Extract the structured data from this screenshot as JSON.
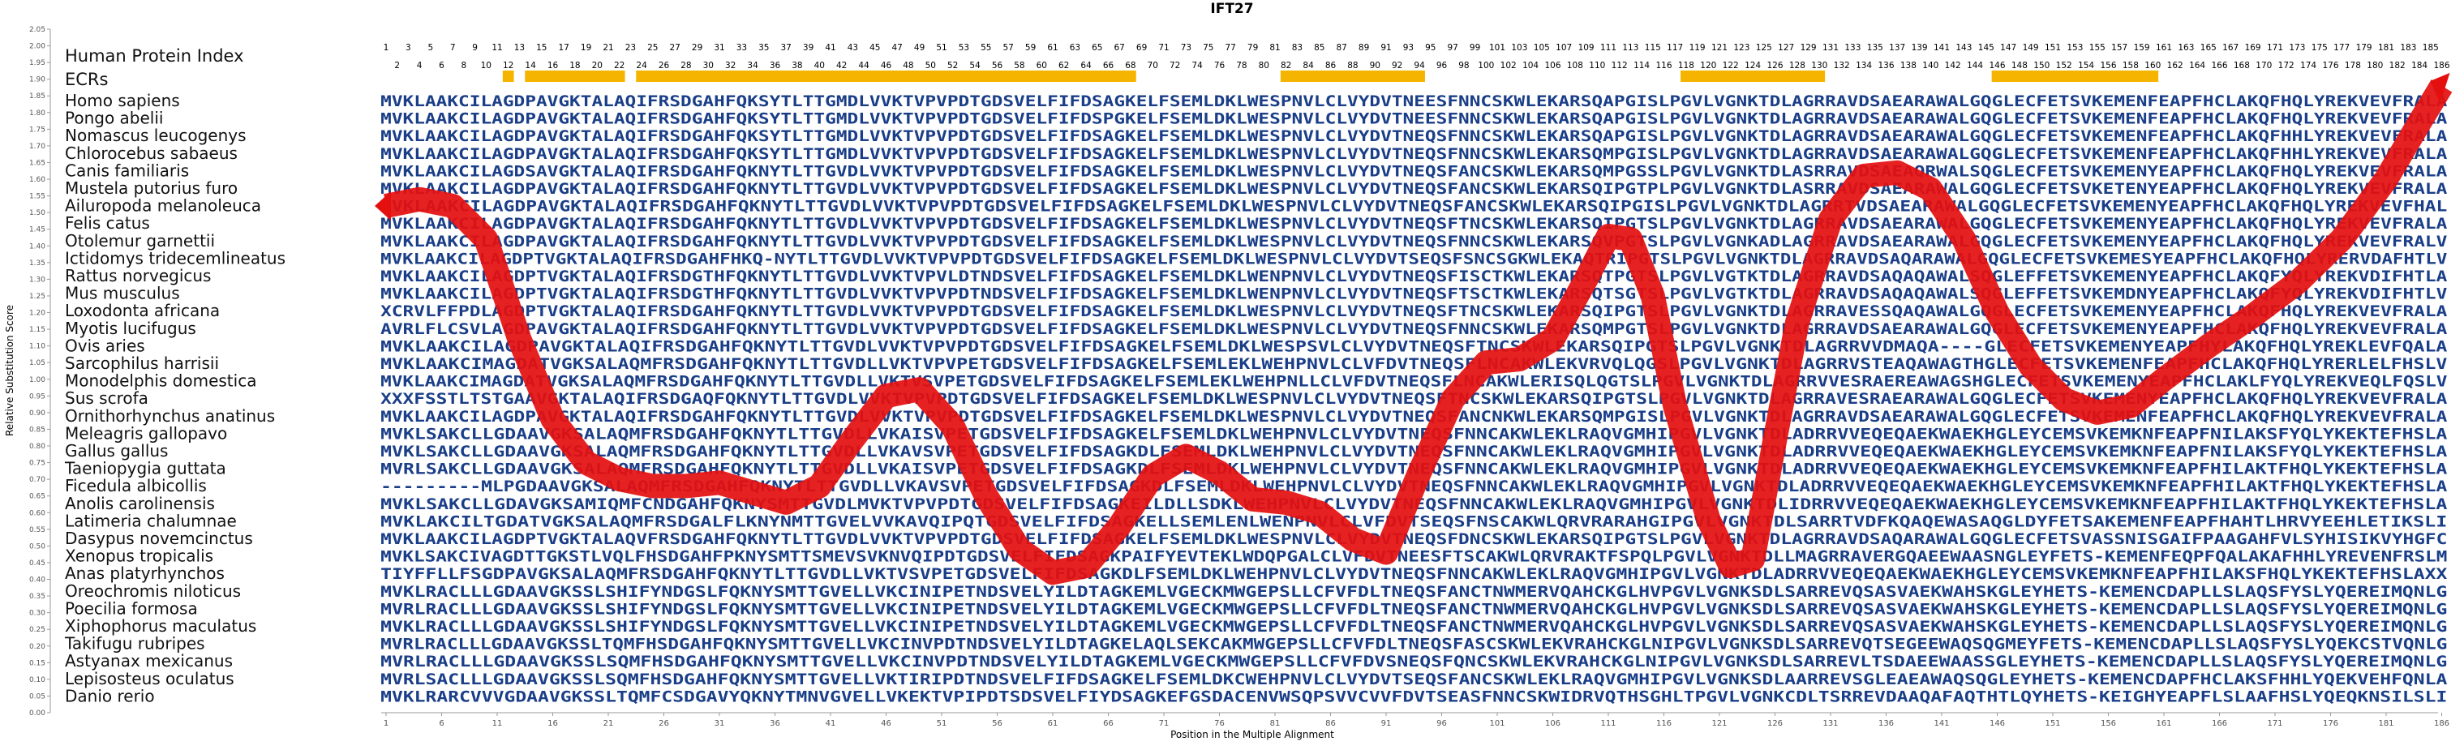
{
  "chart_data": {
    "type": "line",
    "title": "IFT27",
    "xlabel": "Position in the Multiple Alignment",
    "ylabel": "Relative Substitution Score",
    "ylim": [
      0,
      2.05
    ],
    "y_ticks": [
      "0.00",
      "0.05",
      "0.10",
      "0.15",
      "0.20",
      "0.25",
      "0.30",
      "0.35",
      "0.40",
      "0.45",
      "0.50",
      "0.55",
      "0.60",
      "0.65",
      "0.70",
      "0.75",
      "0.80",
      "0.85",
      "0.90",
      "0.95",
      "1.00",
      "1.05",
      "1.10",
      "1.15",
      "1.20",
      "1.25",
      "1.30",
      "1.35",
      "1.40",
      "1.45",
      "1.50",
      "1.55",
      "1.60",
      "1.65",
      "1.70",
      "1.75",
      "1.80",
      "1.85",
      "1.90",
      "1.95",
      "2.00",
      "2.05"
    ],
    "xlim": [
      1,
      186
    ],
    "x_ticks": [
      "1",
      "6",
      "11",
      "16",
      "21",
      "26",
      "31",
      "36",
      "41",
      "46",
      "51",
      "56",
      "61",
      "66",
      "71",
      "76",
      "81",
      "86",
      "91",
      "96",
      "101",
      "106",
      "111",
      "116",
      "121",
      "126",
      "131",
      "136",
      "141",
      "146",
      "151",
      "156",
      "161",
      "166",
      "171",
      "176",
      "181",
      "186"
    ],
    "human_index_label": "Human Protein Index",
    "ecrs_label": "ECRs",
    "ecr_color": "#f5b400",
    "curve_color": "#e41010",
    "letter_colors": {
      "conserved": "#1a3e87",
      "variable": "#5e8fb4"
    },
    "ecr_regions": [
      [
        12,
        12
      ],
      [
        14,
        22
      ],
      [
        24,
        68
      ],
      [
        82,
        94
      ],
      [
        118,
        130
      ],
      [
        146,
        160
      ]
    ],
    "series": [
      {
        "points": [
          [
            1,
            1.52
          ],
          [
            4,
            1.54
          ],
          [
            7,
            1.52
          ],
          [
            10,
            1.42
          ],
          [
            13,
            1.12
          ],
          [
            16,
            0.88
          ],
          [
            19,
            0.75
          ],
          [
            22,
            0.7
          ],
          [
            25,
            0.68
          ],
          [
            28,
            0.68
          ],
          [
            31,
            0.69
          ],
          [
            34,
            0.66
          ],
          [
            37,
            0.63
          ],
          [
            40,
            0.68
          ],
          [
            43,
            0.82
          ],
          [
            46,
            0.95
          ],
          [
            49,
            0.97
          ],
          [
            52,
            0.86
          ],
          [
            55,
            0.65
          ],
          [
            58,
            0.49
          ],
          [
            61,
            0.42
          ],
          [
            64,
            0.44
          ],
          [
            67,
            0.56
          ],
          [
            70,
            0.71
          ],
          [
            73,
            0.77
          ],
          [
            76,
            0.72
          ],
          [
            79,
            0.64
          ],
          [
            82,
            0.63
          ],
          [
            85,
            0.6
          ],
          [
            88,
            0.52
          ],
          [
            91,
            0.48
          ],
          [
            94,
            0.72
          ],
          [
            97,
            0.94
          ],
          [
            100,
            1.05
          ],
          [
            103,
            1.06
          ],
          [
            106,
            1.12
          ],
          [
            109,
            1.3
          ],
          [
            111,
            1.43
          ],
          [
            113,
            1.42
          ],
          [
            115,
            1.25
          ],
          [
            117,
            0.92
          ],
          [
            120,
            0.58
          ],
          [
            122,
            0.44
          ],
          [
            124,
            0.46
          ],
          [
            126,
            0.82
          ],
          [
            128,
            1.17
          ],
          [
            131,
            1.48
          ],
          [
            134,
            1.61
          ],
          [
            137,
            1.62
          ],
          [
            140,
            1.57
          ],
          [
            143,
            1.42
          ],
          [
            146,
            1.2
          ],
          [
            149,
            1.04
          ],
          [
            152,
            0.94
          ],
          [
            155,
            0.9
          ],
          [
            158,
            0.92
          ],
          [
            161,
            1.0
          ],
          [
            165,
            1.1
          ],
          [
            169,
            1.19
          ],
          [
            173,
            1.29
          ],
          [
            177,
            1.42
          ],
          [
            181,
            1.6
          ],
          [
            184,
            1.77
          ],
          [
            186,
            1.88
          ]
        ]
      }
    ]
  },
  "alignment": {
    "species": [
      "Homo sapiens",
      "Pongo abelii",
      "Nomascus leucogenys",
      "Chlorocebus sabaeus",
      "Canis familiaris",
      "Mustela putorius furo",
      "Ailuropoda melanoleuca",
      "Felis catus",
      "Otolemur garnettii",
      "Ictidomys tridecemlineatus",
      "Rattus norvegicus",
      "Mus musculus",
      "Loxodonta africana",
      "Myotis lucifugus",
      "Ovis aries",
      "Sarcophilus harrisii",
      "Monodelphis domestica",
      "Sus scrofa",
      "Ornithorhynchus anatinus",
      "Meleagris gallopavo",
      "Gallus gallus",
      "Taeniopygia guttata",
      "Ficedula albicollis",
      "Anolis carolinensis",
      "Latimeria chalumnae",
      "Dasypus novemcinctus",
      "Xenopus tropicalis",
      "Anas platyrhynchos",
      "Oreochromis niloticus",
      "Poecilia formosa",
      "Xiphophorus maculatus",
      "Takifugu rubripes",
      "Astyanax mexicanus",
      "Lepisosteus oculatus",
      "Danio rerio"
    ],
    "sequences": [
      "MVKLAAKCILAGDPAVGKTALAQIFRSDGAHFQKSYTLTTGMDLVVKTVPVPDTGDSVELFIFDSAGKELFSEMLDKLWESPNVLCLVYDVTNEESFNNCSKWLEKARSQAPGISLPGVLVGNKTDLAGRRAVDSAEARAWALGQGLECFETSVKEMENFEAPFHCLAKQFHQLYREKVEVFRALA",
      "MVKLAAKCILAGDPAVGKTALAQIFRSDGAHFQKSYTLTTGMDLVVKTVPVPDTGDSVELFIFDSPGKELFSEMLDKLWESPNVLCLVYDVTNEESFNNCSKWLEKARSQAPGISLPGVLVGNKTDLAGRRAVDSAEARAWALGQGLECFETSVKEMENFEAPFHCLAKQFHQLYREKVEVFRALA",
      "MVKLAAKCILAGDPAVGKTALAQIFRSDGAHFQKSYTLTTGMDLVVKTVPVPDTGDSVELFIFDSAGKELFSEMLDKLWESPNVLCLVYDVTNEQSFNNCSKWLEKARSQAPGISLPGVLVGNKTDLAGRRAVDSAEARAWALGQGLECFETSVKEMENFEAPFHCLAKQFHHLYREKVEVFRALA",
      "MVKLAAKCILAGDPAVGKTALAQIFRSDGAHFQKSYTLTTGMDLVVKTVPVPDTGDSVELFIFDSAGKELFSEMLDKLWESPNVLCLVYDVTNEQSFNNCSKWLEKARSQMPGISLPGVLVGNKTDLAGRRAVDSAEARAWALGQGLECFETSVKEMENFEAPFHCLAKQFHHLYREKVEVFRALA",
      "MVKLAAKCILAGDSAVGKTALAQIFRSDGAHFQKNYTLTTGVDLVVKTVPVPDTGDSVELFIFDSAGKELFSEMLDKLWESPNVLCLVYDVTNEQSFANCSKWLEKARSQMPGSSLPGVLVGNKTDLASRRAVDSAEAQRWALSQGLECFETSVKEMENYEAPFHCLAKQFHQLYREKVEVFRALA",
      "MVKLAAKCILAGDPAVGKTALAQIFRSDGAHFQKNYTLTTGVDLVVKTVPVPDTGDSVELFIFDSAGKELFSEMLDKLWESPNVLCLVYDVTNEQSFANCSKWLEKARSQIPGTPLPGVLVGNKTDLASRRAVDSAEARAWALGQGLECFETSVKETENYEAPFHCLAKQFHQLYREKVEVFRALA",
      "MVKLAAKCILAGDPAVGKTALAQIFRSDGAHFQKNYTLTTGVDLVVKTVPVPDTGDSVELFIFDSAGKELFSEMLDKLWESPNVLCLVYDVTNEQSFANCSKWLEKARSQIPGISLPGVLVGNKTDLAGRRTVDSAEARAWALGQGLECFETSVKEMENYEAPFHCLAKQFHQLYREKVEVFHAL",
      "MVKLAAKCILAGDPAVGKTALAQIFRSDGAHFQKNYTLTTGVDLVVKTVPVPDTGDSVELFIFDSAGKELFSEMLDKLWESPNVLCLVYDVTNEQSFTNCSKWLEKARSQIPGTSLPGVLVGNKTDLAGRRAVDSAEARAWALGQGLECFETSVKEMENYEAPFHCLAKQFHQLYREKVEVFRALA",
      "MVKLAAKCILAGDPAVGKTALAQIFRSDGAHFQKNYTLTTGVDLVVKTVPVPDTGDSVELFIFDSAGKELFSEMLDKLWESPNVLCLVYDVTNEQSFNNCSKWLEKARSQVPGTSLPGVLVGNKADLAGRRAVDSAEARAWALGQGLECFETSVKEMENYEAPFHCLAKQFHQLYREKVEVFRALV",
      "MVKLAAKCILAGDPTVGKTALAQIFRSDGAHFHKQ-NYTLTTGVDLVVKTVPVPDTGDSVELFIFDSAGKELFSEMLDKLWESPNVLCLVYDVTSEQSFSNCSGKWLEKAQTRIPGTSLPGVLVGNKTDLAGRRAVDSAQARAWALGQGLECFETSVKEMESYEAPFHCLAKQFHQLYRERVDAFHTLV",
      "MVKLAAKCILAGDPTVGKTALAQIFRSDGTHFQKNYTLTTGVDLVVKTVPVLDTNDSVELFIFDSAGKELFSEMLDKLWENPNVLCLVYDVTNEQSFISCTKWLEKARSQTPGTSLPGVLVGTKTDLAGRRAVDSAQAQAWALSQGLEFFETSVKEMENYEAPFHCLAKQFYQLYREKVDIFHTLA",
      "MVKLAAKCILAGDPTVGKTALAQIFRSDGTHFQKNYTLTTGVDLVVKTVPVPDTNDSVELFIFDSAGKELFSEMLDKLWENPNVLCLVYDVTNEQSFTSCTKWLEKARSQTSGTSLPGVLVGTKTDLAGRRAVDSAQAQAWALSQGLEFFETSVKEMDNYEAPFHCLAKQFYQLYREKVDIFHTLV",
      "XCRVLFFPDLAGDPTVGKTALAQIFRSDGAHFQKNYTLTTGVDLVVKTVPVPDTGDSVELFIFDSAGKELFSEMLDKLWESPNVLCLVYDVTNEQSFTNCSKWLEKARSQIPGTSLPGVLVGNKTDLAGRRAVESSQAQAWALGQGLECFETSVKEMENYEAPFHCLAKQFHQLYREKVEVFRALA",
      "AVRLFLCSVLAGDPAVGKTALAQIFRSDGAHFQKNYTLTTGVDLVVKTVPVPDTGDSVELFIFDSAGKELFSEMLDKLWESPNVLCLVYDVTNEQSFNNCSKWLEKARSQMPGTSLPGVLVGNKTDLAGRRAVDSAEARAWALGQGLECFETSVKEMENYEAPFHCLAKQFHQLYREKVEVFRALA",
      "MVKLAAKCILAGDPAVGKTALAQIFRSDGAHFQKNYTLTTGVDLVVKTVPVPDTGDSVELFIFDSAGKELFSEMLDKLWESPSVLCLVYDVTNEQSFTNCSKWLEKARSQIPGTSLPGVLVGNKTDLAGRRVVDMAQA----GLECFETSVKEMENYEAPFHYLAKQFHQLYREKLEVFQALA",
      "MVKLAAKCIMAGDATVGKSALAQMFRSDGAHFQKNYTLTTGVDLLVKTVPVPETGDSVELFIFDSAGKELFSEMLEKLWEHPNVLCLVFDVTNEQSFLNCAKWLEKVRVQLQGSLPGVLVGNKTDLAGRRVSTEAQAWAGTHGLECFETSVKEMENFEAPFHCLAKQFHQLYRERLELFHSLV",
      "MVKLAAKCIMAGDATVGKSALAQMFRSDGAHFQKNYTLTTGVDLLVKTVSVPETGDSVELFIFDSAGKELFSEMLEKLWEHPNLLCLVFDVTNEQSFLNCAKWLERISQLQGTSLPGVLVGNKTDLAGRRVVESRAEREAWAGSHGLECFETSVKEMENYEAPFHCLAKLFYQLYREKVEQLFQSLV",
      "XXXFSSTLTSTGAAVGKTALAQIFRSDGAQFQKNYTLTTGVDLVVKTVPVPDTGDSVELFIFDSAGKELFSEMLDKLWESPNVLCLVYDVTNEQSFTNCSKWLEKARSQIPGTSLPGVLVGNKTDLAGRRAVESRAEARAWALGQGLECFETSVKEMENYEAPFHCLAKQFHQLYREKVEVFRALA",
      "MVKLAAKCILAGDPAVGKTALAQIFRSDGAHFQKNYTLTTGVDLVVKTVPVPDTGDSVELFIFDSAGKELFSEMLDKLWESPNVLCLVYDVTNEQSFANCNKWLEKARSQMPGISLPGVLVGNKTDLAGRRAVDSAEARAWALGQGLECFETSVKEMENFEAPFHCLAKQFHQLYREKVEVFRALA",
      "MVKLSAKCLLGDAAVGKSALAQMFRSDGAHFQKNYTLTTGVDLLVKAISVPETGDSVELFIFDSAGKELFSEMLDKLWEHPNVLCLVYDVTNEQSFNNCAKWLEKLRAQVGMHIPGVLVGNKTDLADRRVVEQEQAEKWAEKHGLEYCEMSVKEMKNFEAPFNILAKSFYQLYKEKTEFHSLA",
      "MVKLSAKCLLGDAAVGKSALAQMFRSDGAHFQKNYTLTTGVDLLVKAVSVPETGDSVELFIFDSAGKDLFSEMLDKLWEHPNVLCLVYDVTNEQSFNNCAKWLEKLRAQVGMHIPGVLVGNKTDLADRRVVEQEQAEKWAEKHGLEYCEMSVKEMKNFEAPFNILAKSFYQLYKEKTEFHSLA",
      "MVRLSAKCLLGDAAVGKSALAQMFRSDGAHFQKNYTLTTGVDLLVKAISVPETGDSVELFIFDSAGKDLFSEMLDKLWEHPNVLCLVYDVTNEQSFNNCAKWLEKLRAQVGMHIPGVLVGNKTDLADRRVVEQEQAEKWAEKHGLEYCEMSVKEMKNFEAPFHILAKTFHQLYKEKTEFHSLA",
      "---------MLPGDAAVGKSALAQMFRSDGAHFQKNYTLTTGVDLLVKAVSVPETGDSVELFIFDSAGKDLFSEMLDKLWEHPNVLCLVYDVTNEQSFNNCAKWLEKLRAQVGMHIPGVLVGNKTDLADRRVVEQEQAEKWAEKHGLEYCEMSVKEMKNFEAPFHILAKTFHQLYKEKTEFHSLA",
      "MVKLSAKCLLGDAVGKSAMIQMFCNDGAHFQKNYSMTTGVDLMVKTVPVPDTGDSVELFIFDSAGKEILDLLSDKLWEHPNVLCLVYDVTNEQSFNNCAKWLEKLRAQVGMHIPGVLVGNKTDLIDRRVVEQEQAEKWAEKHGLEYCEMSVKEMKNFEAPFHILAKTFHQLYKEKTEFHSLA",
      "MVKLAKCILTGDATVGKSALAQMFRSDGALFLKNYNMTTGVELVVKAVQIPQTGDSVELFIFDSAGKELLSEMLENLWENPNVLCLVFDVTSEQSFNSCAKWLQRVRARAHGIPGVLVGNKTDLSARRTVDFKQAQEWASAQGLDYFETSAKEMENFEAPFHAHTLHRVYEEHLETIKSLI",
      "MVKLAAKCILAGDPTVGKTALAQVFRSDGAHFQKNYTLTTGVDLVVKTVPVPDTGDSVELFIFDSAGKELFSEMLDKLWESPNVLCLVYDVTNEQSFDNCSKWLEKARSQIPGTSLPGVLVGNKTDLAGRRAVDSAQARAWALGQGLECFETSVASSNISGAIFPAAGAHFVLSYHISIKVYHGFC",
      "MVKLSAKCIVAGDTTGKSTLVQLFHSDGAHFPKNYSMTTSMEVSVKNVQIPDTGDSVELFIFDSAGKPAIFYEVTEKLWDQPGALCLVFDVTNEESFTSCAKWLQRVRAKTFSPQLPGVLVGNKTDLLMAGRRAVERGQAEEWAASNGLEYFETS-KEMENFEQPFQALAKAFHHLYREVENFRSLM",
      "TIYFFLLFSGDPAVGKSALAQMFRSDGAHFQKNYTLTTGVDLLVKTVSVPETGDSVELFIFDSAGKDLFSEMLDKLWEHPNVLCLVYDVTNEQSFNNCAKWLEKLRAQVGMHIPGVLVGNKTDLADRRVVEQEQAEKWAEKHGLEYCEMSVKEMKNFEAPFHILAKSFHQLYKEKTEFHSLAXX",
      "MVKLRACLLLGDAAVGKSSLSHIFYNDGSLFQKNYSMTTGVELLVKCINIPETNDSVELYILDTAGKEMLVGECKMWGEPSLLCFVFDLTNEQSFANCTNWMERVQAHCKGLHVPGVLVGNKSDLSARREVQSASVAEKWAHSKGLEYHETS-KEMENCDAPLLSLAQSFYSLYQEREIMQNLG",
      "MVRLRACLLLGDAAVGKSSLSHIFYNDGSLFQKNYSMTTGVELLVKCINIPETNDSVELYILDTAGKEMLVGECKMWGEPSLLCFVFDLTNEQSFANCTNWMERVQAHCKGLHVPGVLVGNKSDLSARREVQSASVAEKWAHSKGLEYHETS-KEMENCDAPLLSLAQSFYSLYQEREIMQNLG",
      "MVKLRACLLLGDAAVGKSSLSHIFYNDGSLFQKNYSMTTGVELLVKCINIPETNDSVELYILDTAGKEMLVGECKMWGEPSLLCFVFDLTNEQSFANCTNWMERVQAHCKGLHVPGVLVGNKSDLSARREVQSASVAEKWAHSKGLEYHETS-KEMENCDAPLLSLAQSFYSLYQEREIMQNLG",
      "MVRLRACLLLGDAAVGKSSLTQMFHSDGAHFQKNYSMTTGVELLVKCINVPDTNDSVELYILDTAGKELAQLSEKCAKMWGEPSLLCFVFDLTNEQSFASCSKWLEKVRAHCKGLNIPGVLVGNKSDLSARREVQTSEGEEWAQSQGMEYFETS-KEMENCDAPLLSLAQSFYSLYQEKCSTVQNLG",
      "MVRLRACLLLGDAAVGKSSLSQMFHSDGAHFQKNYSMTTGVELLVKCINVPDTNDSVELYILDTAGKEMLVGECKMWGEPSLLCFVFDVSNEQSFQNCSKWLEKVRAHCKGLNIPGVLVGNKSDLSARREVLTSDAEEWAASSGLEYHETS-KEMENCDAPLLSLAQSFYSLYQEREIMQNLG",
      "MVRLSACLLLGDAAVGKSSLSQMFHSDGAHFQKNYSMTTGVELLVKTIRIPDTNDSVELFIFDSAGKELFSEMLDKCWEHPNVLCLVYDVTSEQSFANCSKWLEKLRAQVGMHIPGVLVGNKSDLAARREVSGLEAEAWAQSQGLEYHETS-KEMENCDAPFHCLAKSFHHLYQEKVEHFQNLA",
      "MVKLRARCVVVGDAAVGKSSLTQMFCSDGAVYQKNYTMNVGVELLVKEKTVPIPDTSDSVELFIYDSAGKEFGSDACENVWSQPSVVCVVFDVTSEASFNNCSKWIDRVQTHSGHLTPGVLVGNKCDLTSRREVDAAQAFAQTHTLQYHETS-KEIGHYEAPFLSLAAFHSLYQEQKNSILSLI"
    ]
  }
}
